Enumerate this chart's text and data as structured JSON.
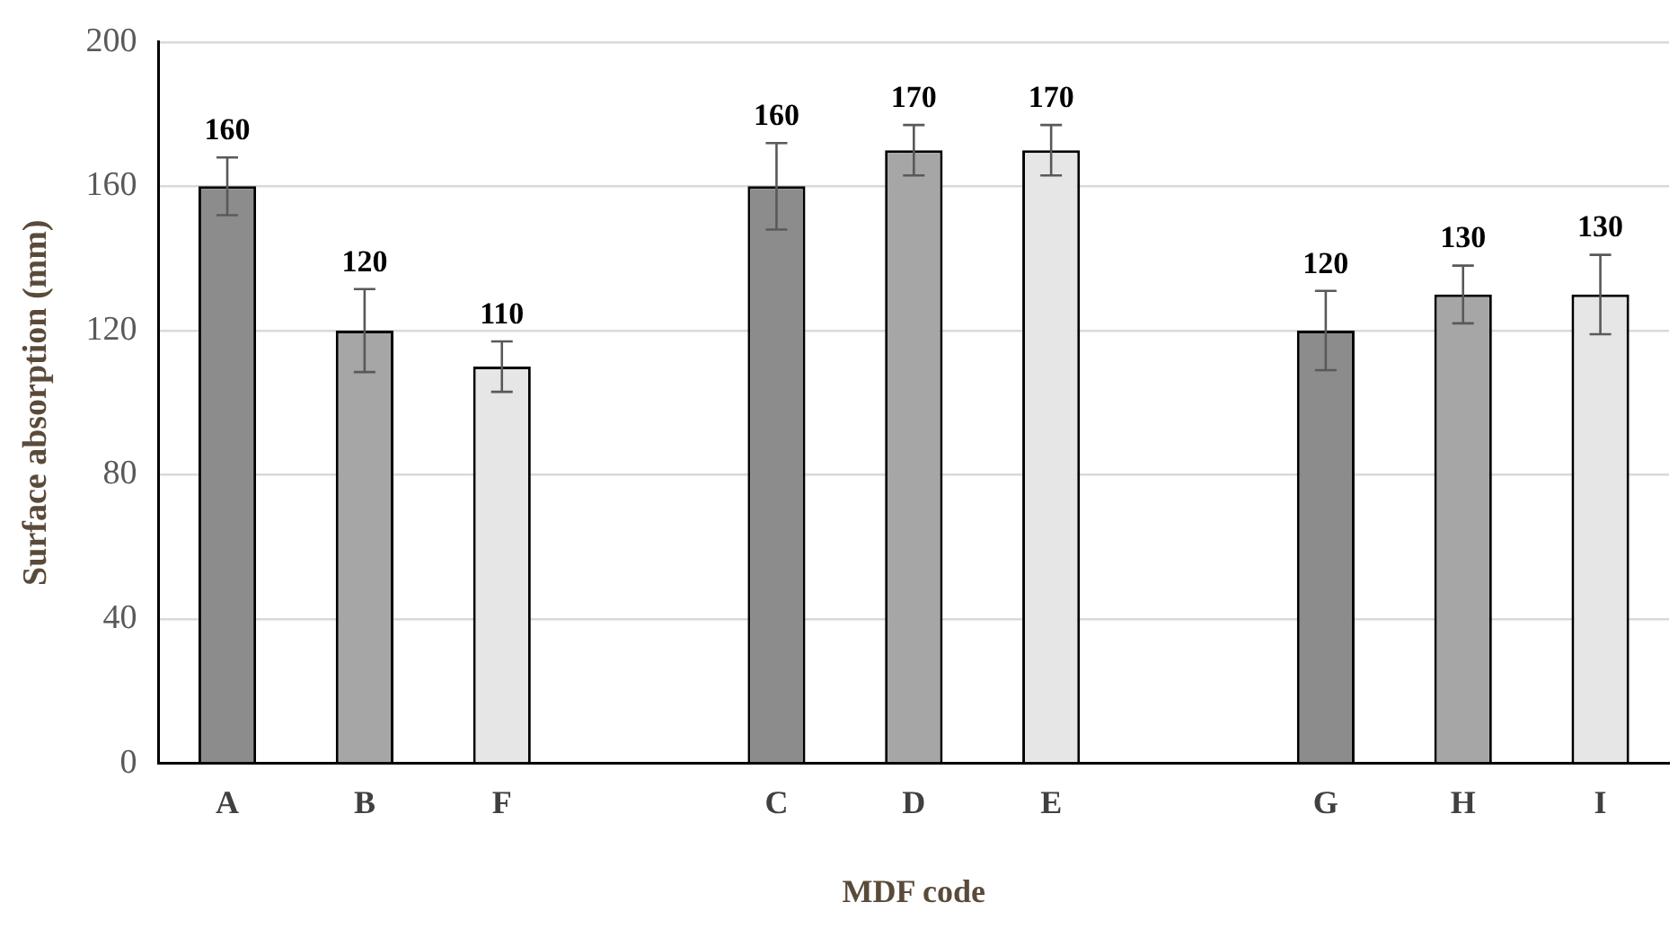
{
  "chart_data": {
    "type": "bar",
    "xlabel": "MDF code",
    "ylabel": "Surface absorption (mm)",
    "categories": [
      "A",
      "B",
      "F",
      null,
      "C",
      "D",
      "E",
      null,
      "G",
      "H",
      "I"
    ],
    "values": [
      160,
      120,
      110,
      null,
      160,
      170,
      170,
      null,
      120,
      130,
      130
    ],
    "colors": [
      "#8c8c8c",
      "#a6a6a6",
      "#e6e6e6",
      null,
      "#8c8c8c",
      "#a6a6a6",
      "#e6e6e6",
      null,
      "#8c8c8c",
      "#a6a6a6",
      "#e6e6e6"
    ],
    "errors": [
      8,
      11.5,
      7,
      null,
      12,
      7,
      7,
      null,
      11,
      8,
      11
    ],
    "ylim": [
      0,
      200
    ],
    "yticks": [
      0,
      40,
      80,
      120,
      160,
      200
    ],
    "grid": "y",
    "data_labels": true
  }
}
